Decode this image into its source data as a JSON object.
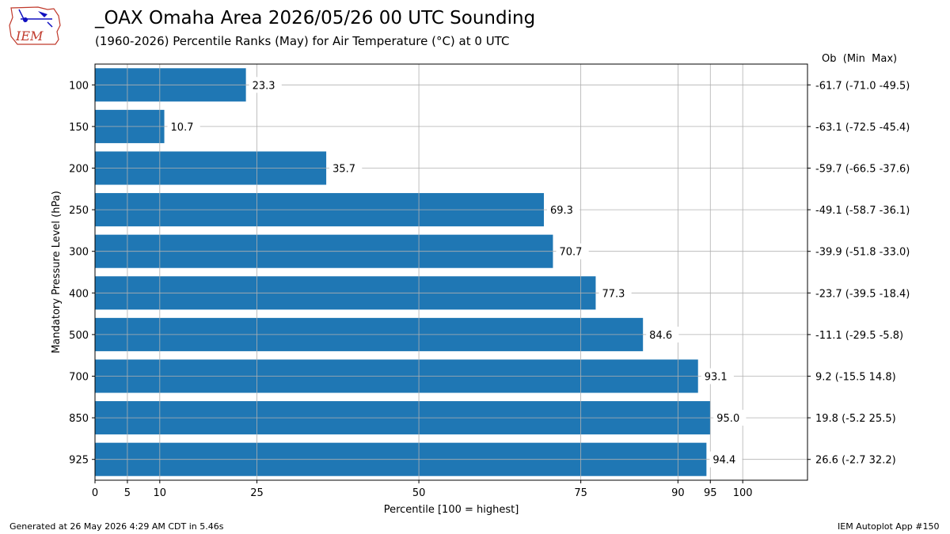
{
  "header": {
    "title": "_OAX Omaha Area  2026/05/26 00 UTC Sounding",
    "subtitle": "(1960-2026) Percentile Ranks (May) for Air Temperature (°C) at 0 UTC",
    "right_column_header": "Ob  (Min  Max)"
  },
  "logo": {
    "text": "IEM"
  },
  "footer": {
    "generated": "Generated at 26 May 2026 4:29 AM CDT in 5.46s",
    "app": "IEM Autoplot App #150"
  },
  "chart_data": {
    "type": "bar",
    "orientation": "horizontal",
    "xlabel": "Percentile [100 = highest]",
    "ylabel": "Mandatory Pressure Level (hPa)",
    "xlim": [
      0,
      110
    ],
    "xticks": [
      0,
      5,
      10,
      25,
      50,
      75,
      90,
      95,
      100
    ],
    "grid": true,
    "bar_color": "#1f77b4",
    "categories": [
      "100",
      "150",
      "200",
      "250",
      "300",
      "400",
      "500",
      "700",
      "850",
      "925"
    ],
    "values": [
      23.3,
      10.7,
      35.7,
      69.3,
      70.7,
      77.3,
      84.6,
      93.1,
      95.0,
      94.4
    ],
    "value_labels": [
      "23.3",
      "10.7",
      "35.7",
      "69.3",
      "70.7",
      "77.3",
      "84.6",
      "93.1",
      "95.0",
      "94.4"
    ],
    "right_labels": [
      "-61.7 (-71.0 -49.5)",
      "-63.1 (-72.5 -45.4)",
      "-59.7 (-66.5 -37.6)",
      "-49.1 (-58.7 -36.1)",
      "-39.9 (-51.8 -33.0)",
      "-23.7 (-39.5 -18.4)",
      "-11.1 (-29.5 -5.8)",
      "9.2 (-15.5 14.8)",
      "19.8 (-5.2 25.5)",
      "26.6 (-2.7 32.2)"
    ]
  }
}
